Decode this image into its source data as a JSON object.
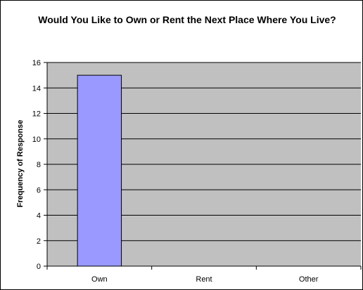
{
  "chart_data": {
    "type": "bar",
    "title": "Would You Like to Own or Rent the Next Place Where You Live?",
    "xlabel": "",
    "ylabel": "Frequency of Response",
    "categories": [
      "Own",
      "Rent",
      "Other"
    ],
    "values": [
      15,
      0,
      0
    ],
    "ylim": [
      0,
      16
    ],
    "yticks": [
      0,
      2,
      4,
      6,
      8,
      10,
      12,
      14,
      16
    ],
    "grid": true,
    "legend": "none",
    "bar_color": "#9999ff",
    "plot_background": "#c0c0c0"
  }
}
